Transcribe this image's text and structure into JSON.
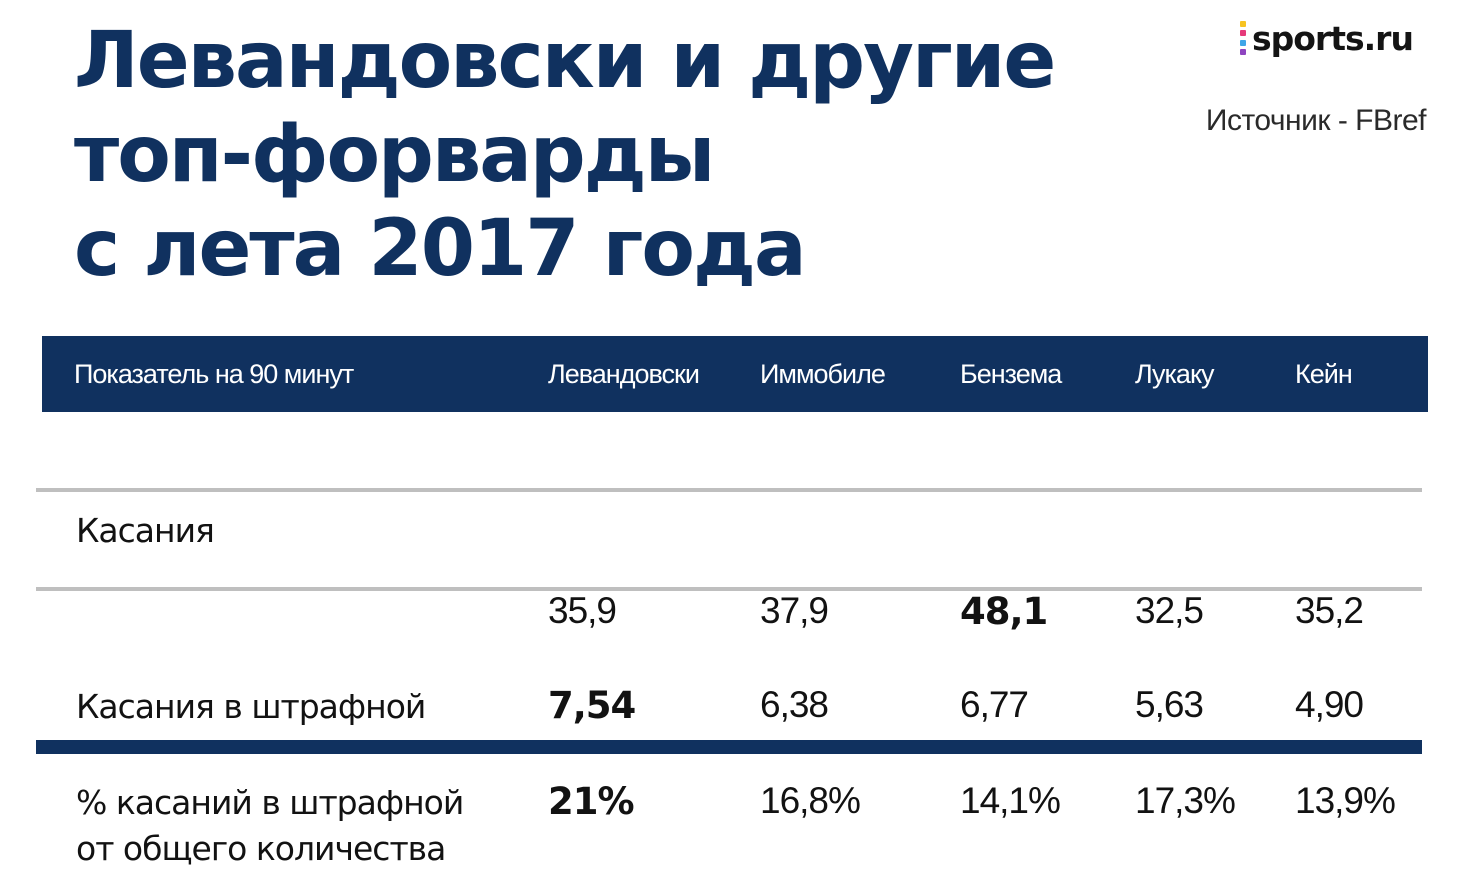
{
  "title": {
    "lines": [
      "Левандовски и другие",
      "топ-форварды",
      "с лета 2017 года"
    ]
  },
  "brand": {
    "logo_text": "sports.ru",
    "logo_icon": "sports-ru-dots-icon",
    "logo_colors": [
      "#f7c321",
      "#e63a7a",
      "#3ea6e8",
      "#8e44c0"
    ]
  },
  "source": "Источник - FBref",
  "colors": {
    "accent": "#10315f",
    "divider": "#bfbfbf"
  },
  "table": {
    "headers": [
      "Показатель на 90 минут",
      "Левандовски",
      "Иммобиле",
      "Бензема",
      "Лукаку",
      "Кейн"
    ],
    "rows": [
      {
        "label": [
          "Касания"
        ],
        "values": [
          "35,9",
          "37,9",
          "48,1",
          "32,5",
          "35,2"
        ],
        "bold_index": 2
      },
      {
        "label": [
          "Касания в штрафной"
        ],
        "values": [
          "7,54",
          "6,38",
          "6,77",
          "5,63",
          "4,90"
        ],
        "bold_index": 0
      },
      {
        "label": [
          "% касаний в штрафной",
          "от общего количества"
        ],
        "values": [
          "21%",
          "16,8%",
          "14,1%",
          "17,3%",
          "13,9%"
        ],
        "bold_index": 0
      }
    ]
  }
}
